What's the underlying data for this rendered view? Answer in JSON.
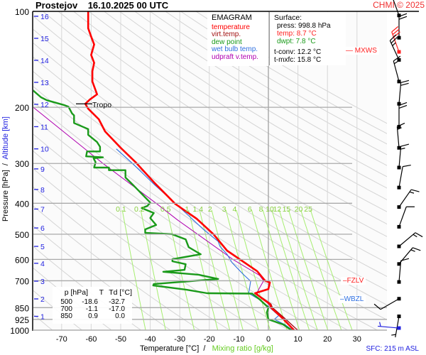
{
  "header": {
    "station": "Prostejov",
    "datetime": "16.10.2025 00 UTC",
    "copyright": "CHMI © 2025"
  },
  "legend": {
    "title": "EMAGRAM",
    "items": [
      {
        "label": "temperature",
        "color": "#ff0000"
      },
      {
        "label": "virt.temp.",
        "color": "#a01010"
      },
      {
        "label": "dew point",
        "color": "#1a9a1a"
      },
      {
        "label": "wet bulb temp.",
        "color": "#2f6fe0"
      },
      {
        "label": "udpraft v.temp.",
        "color": "#b000b0"
      }
    ]
  },
  "surface": {
    "title": "Surface:",
    "press": "press: 998.8 hPa",
    "temp": "temp: 8.7 °C",
    "dwpt": "dwpt: 7.8 °C",
    "tconv": "t-conv: 12.2 °C",
    "tmxfc": "t-mxfc: 15.8 °C"
  },
  "table": {
    "headers": [
      "p [hPa]",
      "T",
      "Td [°C]"
    ],
    "rows": [
      [
        "500",
        "-18.6",
        "-32.7"
      ],
      [
        "700",
        "-1.1",
        "-17.0"
      ],
      [
        "850",
        "0.9",
        "0.0"
      ]
    ]
  },
  "markers": {
    "mxws": {
      "label": "MXWS",
      "p": 134,
      "color": "#ff2020"
    },
    "fzlv": {
      "label": "FZLV",
      "p": 706,
      "color": "#ff2020"
    },
    "wbzl": {
      "label": "WBZL",
      "p": 805,
      "color": "#2f6fe0"
    },
    "tropo": {
      "label": "Tropo",
      "p": 195,
      "T": -62
    }
  },
  "footer": {
    "sfc": "SFC: 215 m ASL"
  },
  "chart_data": {
    "type": "line",
    "title": "Prostejov 16.10.2025 00 UTC",
    "xlabel": "Temperature [°C]",
    "xlabel_sep": "/",
    "xlabel2": "Mixing ratio [g/kg]",
    "ylabel": "Pressure [hPa]",
    "ylabel_sep": "/",
    "ylabel2": "Altitude [km]",
    "xlim": [
      -80,
      34
    ],
    "ylim": [
      1000,
      100
    ],
    "yscale": "log",
    "x_ticks": [
      "-70",
      "-60",
      "-50",
      "-40",
      "-30",
      "-20",
      "-10",
      "0",
      "10",
      "20",
      "30"
    ],
    "y_ticks": [
      "100",
      "200",
      "300",
      "400",
      "500",
      "600",
      "700",
      "850",
      "925",
      "1000"
    ],
    "altitude_ticks": [
      {
        "km": "16",
        "p": 103.6
      },
      {
        "km": "15",
        "p": 121.5
      },
      {
        "km": "14",
        "p": 142.4
      },
      {
        "km": "13",
        "p": 167
      },
      {
        "km": "12",
        "p": 195.7
      },
      {
        "km": "11",
        "p": 230
      },
      {
        "km": "10",
        "p": 270
      },
      {
        "km": "9",
        "p": 312
      },
      {
        "km": "8",
        "p": 362
      },
      {
        "km": "7",
        "p": 417
      },
      {
        "km": "6",
        "p": 478
      },
      {
        "km": "5",
        "p": 546
      },
      {
        "km": "4",
        "p": 617
      },
      {
        "km": "3",
        "p": 702
      },
      {
        "km": "2",
        "p": 798
      },
      {
        "km": "1",
        "p": 905
      }
    ],
    "mixing_ratio_lines": [
      "0.1",
      "0.2",
      "0.5",
      "1",
      "1.4",
      "2",
      "3",
      "4",
      "6",
      "8",
      "10",
      "12",
      "15",
      "20",
      "25"
    ],
    "grid": true,
    "legend_position": "top-right",
    "series": [
      {
        "name": "temperature",
        "color": "#ff0000",
        "points": [
          [
            100,
            -61
          ],
          [
            113,
            -61
          ],
          [
            120,
            -60
          ],
          [
            127,
            -59
          ],
          [
            137,
            -60
          ],
          [
            145,
            -59
          ],
          [
            154,
            -59.6
          ],
          [
            166,
            -59.6
          ],
          [
            182,
            -58
          ],
          [
            189,
            -60.4
          ],
          [
            195,
            -62
          ],
          [
            202,
            -61
          ],
          [
            218,
            -57.4
          ],
          [
            238,
            -55.3
          ],
          [
            268,
            -50
          ],
          [
            297,
            -45
          ],
          [
            344,
            -38.7
          ],
          [
            402,
            -31.5
          ],
          [
            447,
            -24.3
          ],
          [
            500,
            -18.6
          ],
          [
            563,
            -14
          ],
          [
            653,
            -3.8
          ],
          [
            700,
            -1.1
          ],
          [
            709,
            0.5
          ],
          [
            743,
            0
          ],
          [
            766,
            -4.5
          ],
          [
            828,
            0.5
          ],
          [
            850,
            0.9
          ],
          [
            912,
            4.5
          ],
          [
            1000,
            8.7
          ]
        ]
      },
      {
        "name": "virt.temp.",
        "color": "#a01010",
        "points": [
          [
            766,
            -4.3
          ],
          [
            828,
            0.9
          ],
          [
            850,
            1.4
          ],
          [
            912,
            5.2
          ],
          [
            1000,
            9.9
          ]
        ]
      },
      {
        "name": "dew point",
        "color": "#1a9a1a",
        "points": [
          [
            176,
            -80
          ],
          [
            186,
            -77
          ],
          [
            190,
            -75
          ],
          [
            197,
            -69
          ],
          [
            199,
            -67.7
          ],
          [
            209,
            -66.5
          ],
          [
            212,
            -65.8
          ],
          [
            224,
            -65.8
          ],
          [
            234,
            -61
          ],
          [
            244,
            -61
          ],
          [
            257,
            -58
          ],
          [
            266,
            -57
          ],
          [
            275,
            -57
          ],
          [
            275,
            -61.4
          ],
          [
            285,
            -61.7
          ],
          [
            287,
            -56
          ],
          [
            289,
            -59.2
          ],
          [
            297,
            -58.5
          ],
          [
            309,
            -59
          ],
          [
            309,
            -54
          ],
          [
            315,
            -54
          ],
          [
            315,
            -48.4
          ],
          [
            332,
            -48.4
          ],
          [
            349,
            -46
          ],
          [
            381,
            -42
          ],
          [
            398,
            -40
          ],
          [
            408,
            -41
          ],
          [
            414,
            -42.9
          ],
          [
            429,
            -38.8
          ],
          [
            445,
            -40
          ],
          [
            468,
            -38
          ],
          [
            483,
            -41.7
          ],
          [
            495,
            -41.7
          ],
          [
            500,
            -32.7
          ],
          [
            519,
            -28
          ],
          [
            549,
            -27
          ],
          [
            578,
            -22.9
          ],
          [
            599,
            -32.5
          ],
          [
            608,
            -32.5
          ],
          [
            621,
            -28
          ],
          [
            647,
            -28.4
          ],
          [
            656,
            -35.6
          ],
          [
            670,
            -23.6
          ],
          [
            691,
            -17
          ],
          [
            717,
            -38.8
          ],
          [
            724,
            -39
          ],
          [
            747,
            -27.7
          ],
          [
            766,
            -20.7
          ],
          [
            768,
            -5.5
          ],
          [
            800,
            -3
          ],
          [
            850,
            0
          ],
          [
            880,
            -0.5
          ],
          [
            925,
            0
          ],
          [
            960,
            5
          ],
          [
            1000,
            7.8
          ]
        ]
      },
      {
        "name": "wet bulb temp.",
        "color": "#2f6fe0",
        "points": [
          [
            270,
            -51.5
          ],
          [
            300,
            -46
          ],
          [
            350,
            -38.5
          ],
          [
            408,
            -30.5
          ],
          [
            483,
            -22
          ],
          [
            527,
            -17
          ],
          [
            546,
            -16.4
          ],
          [
            578,
            -14
          ],
          [
            614,
            -12.3
          ],
          [
            670,
            -8.4
          ],
          [
            702,
            -6
          ],
          [
            740,
            -6.4
          ],
          [
            766,
            -6.7
          ],
          [
            800,
            -3.2
          ],
          [
            850,
            0.5
          ],
          [
            900,
            3.5
          ],
          [
            925,
            2
          ],
          [
            960,
            5.5
          ],
          [
            1000,
            8.2
          ]
        ]
      },
      {
        "name": "udpraft v.temp.",
        "color": "#b000b0",
        "points": [
          [
            200,
            -79.6
          ],
          [
            300,
            -56
          ],
          [
            400,
            -38
          ],
          [
            451,
            -30.8
          ],
          [
            500,
            -24
          ],
          [
            600,
            -12
          ],
          [
            673,
            -3
          ],
          [
            700,
            -1.6
          ],
          [
            766,
            -4
          ],
          [
            850,
            1.4
          ],
          [
            1000,
            9.9
          ]
        ]
      }
    ],
    "wind_barbs": [
      {
        "p": 103,
        "dir": 340,
        "kt": 20
      },
      {
        "p": 121,
        "dir": 360,
        "kt": 20
      },
      {
        "p": 134,
        "dir": 340,
        "kt": 30,
        "highlight": true
      },
      {
        "p": 142,
        "dir": 335,
        "kt": 25
      },
      {
        "p": 166,
        "dir": 345,
        "kt": 15
      },
      {
        "p": 195,
        "dir": 5,
        "kt": 20
      },
      {
        "p": 230,
        "dir": 360,
        "kt": 20
      },
      {
        "p": 268,
        "dir": 355,
        "kt": 15
      },
      {
        "p": 309,
        "dir": 5,
        "kt": 15
      },
      {
        "p": 357,
        "dir": 10,
        "kt": 10
      },
      {
        "p": 411,
        "dir": 35,
        "kt": 15
      },
      {
        "p": 474,
        "dir": 20,
        "kt": 10
      },
      {
        "p": 546,
        "dir": 50,
        "kt": 15
      },
      {
        "p": 620,
        "dir": 40,
        "kt": 15
      },
      {
        "p": 706,
        "dir": 5,
        "kt": 10
      },
      {
        "p": 797,
        "dir": 240,
        "kt": 10
      },
      {
        "p": 905,
        "dir": 190,
        "kt": 5
      },
      {
        "p": 985,
        "dir": 275,
        "kt": 5,
        "surface": true
      }
    ]
  }
}
